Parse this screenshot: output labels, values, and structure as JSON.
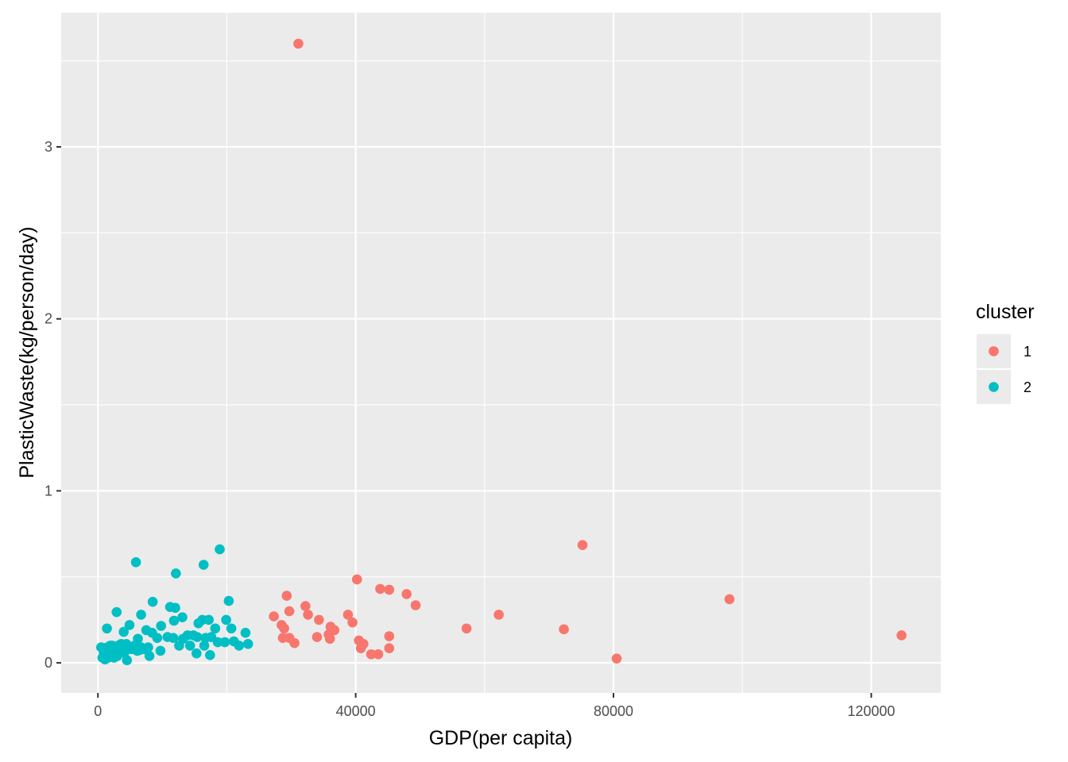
{
  "chart_data": {
    "type": "scatter",
    "title": "",
    "xlabel": "GDP(per capita)",
    "ylabel": "PlasticWaste(kg/person/day)",
    "xlim": [
      -5700,
      130800
    ],
    "ylim": [
      -0.175,
      3.78
    ],
    "x_ticks": [
      0,
      40000,
      80000,
      120000
    ],
    "x_tick_labels": [
      "0",
      "40000",
      "80000",
      "120000"
    ],
    "y_ticks": [
      0,
      1,
      2,
      3
    ],
    "y_tick_labels": [
      "0",
      "1",
      "2",
      "3"
    ],
    "grid": true,
    "background": "#EBEBEB",
    "legend": {
      "title": "cluster",
      "position": "right"
    },
    "series": [
      {
        "name": "1",
        "color": "#F8766D",
        "points": [
          [
            31100,
            3.6
          ],
          [
            75200,
            0.685
          ],
          [
            98000,
            0.37
          ],
          [
            124700,
            0.16
          ],
          [
            80500,
            0.025
          ],
          [
            72300,
            0.195
          ],
          [
            62200,
            0.28
          ],
          [
            57200,
            0.2
          ],
          [
            49300,
            0.335
          ],
          [
            47900,
            0.4
          ],
          [
            45200,
            0.425
          ],
          [
            43800,
            0.43
          ],
          [
            40200,
            0.485
          ],
          [
            45200,
            0.155
          ],
          [
            45200,
            0.085
          ],
          [
            43500,
            0.05
          ],
          [
            42400,
            0.05
          ],
          [
            41200,
            0.11
          ],
          [
            40800,
            0.085
          ],
          [
            40500,
            0.13
          ],
          [
            39500,
            0.235
          ],
          [
            38800,
            0.28
          ],
          [
            36700,
            0.19
          ],
          [
            36100,
            0.21
          ],
          [
            35800,
            0.165
          ],
          [
            36000,
            0.14
          ],
          [
            34300,
            0.25
          ],
          [
            34000,
            0.15
          ],
          [
            32600,
            0.28
          ],
          [
            32200,
            0.33
          ],
          [
            29300,
            0.39
          ],
          [
            29700,
            0.3
          ],
          [
            28500,
            0.22
          ],
          [
            28900,
            0.2
          ],
          [
            27300,
            0.27
          ],
          [
            28700,
            0.145
          ],
          [
            29700,
            0.145
          ],
          [
            30500,
            0.115
          ]
        ]
      },
      {
        "name": "2",
        "color": "#00BFC4",
        "points": [
          [
            18900,
            0.66
          ],
          [
            5900,
            0.585
          ],
          [
            16400,
            0.57
          ],
          [
            12100,
            0.52
          ],
          [
            20300,
            0.36
          ],
          [
            8500,
            0.355
          ],
          [
            11200,
            0.325
          ],
          [
            12000,
            0.32
          ],
          [
            2900,
            0.295
          ],
          [
            6700,
            0.28
          ],
          [
            13100,
            0.265
          ],
          [
            16200,
            0.25
          ],
          [
            17200,
            0.25
          ],
          [
            19900,
            0.25
          ],
          [
            11800,
            0.245
          ],
          [
            4900,
            0.22
          ],
          [
            9800,
            0.215
          ],
          [
            15600,
            0.23
          ],
          [
            18200,
            0.2
          ],
          [
            20700,
            0.2
          ],
          [
            22900,
            0.175
          ],
          [
            1400,
            0.2
          ],
          [
            4000,
            0.18
          ],
          [
            7500,
            0.19
          ],
          [
            8400,
            0.175
          ],
          [
            10800,
            0.15
          ],
          [
            13900,
            0.16
          ],
          [
            14800,
            0.16
          ],
          [
            17600,
            0.15
          ],
          [
            6200,
            0.14
          ],
          [
            9200,
            0.145
          ],
          [
            11700,
            0.145
          ],
          [
            13200,
            0.14
          ],
          [
            15400,
            0.15
          ],
          [
            16700,
            0.145
          ],
          [
            18600,
            0.12
          ],
          [
            19700,
            0.12
          ],
          [
            21100,
            0.125
          ],
          [
            23300,
            0.11
          ],
          [
            21900,
            0.1
          ],
          [
            12600,
            0.1
          ],
          [
            14300,
            0.1
          ],
          [
            16500,
            0.1
          ],
          [
            3600,
            0.11
          ],
          [
            4400,
            0.11
          ],
          [
            5700,
            0.1
          ],
          [
            6700,
            0.09
          ],
          [
            7800,
            0.09
          ],
          [
            500,
            0.09
          ],
          [
            1000,
            0.085
          ],
          [
            1500,
            0.09
          ],
          [
            2200,
            0.1
          ],
          [
            2800,
            0.08
          ],
          [
            3200,
            0.1
          ],
          [
            3800,
            0.09
          ],
          [
            900,
            0.06
          ],
          [
            1300,
            0.06
          ],
          [
            1800,
            0.07
          ],
          [
            2400,
            0.06
          ],
          [
            2700,
            0.05
          ],
          [
            3300,
            0.07
          ],
          [
            4100,
            0.06
          ],
          [
            5200,
            0.08
          ],
          [
            6100,
            0.07
          ],
          [
            7200,
            0.08
          ],
          [
            700,
            0.03
          ],
          [
            1100,
            0.02
          ],
          [
            1600,
            0.03
          ],
          [
            2100,
            0.04
          ],
          [
            2500,
            0.03
          ],
          [
            3000,
            0.04
          ],
          [
            4500,
            0.015
          ],
          [
            8000,
            0.04
          ],
          [
            9700,
            0.07
          ],
          [
            15300,
            0.055
          ],
          [
            17400,
            0.045
          ],
          [
            1900,
            0.1
          ],
          [
            6500,
            0.075
          ]
        ]
      }
    ]
  }
}
